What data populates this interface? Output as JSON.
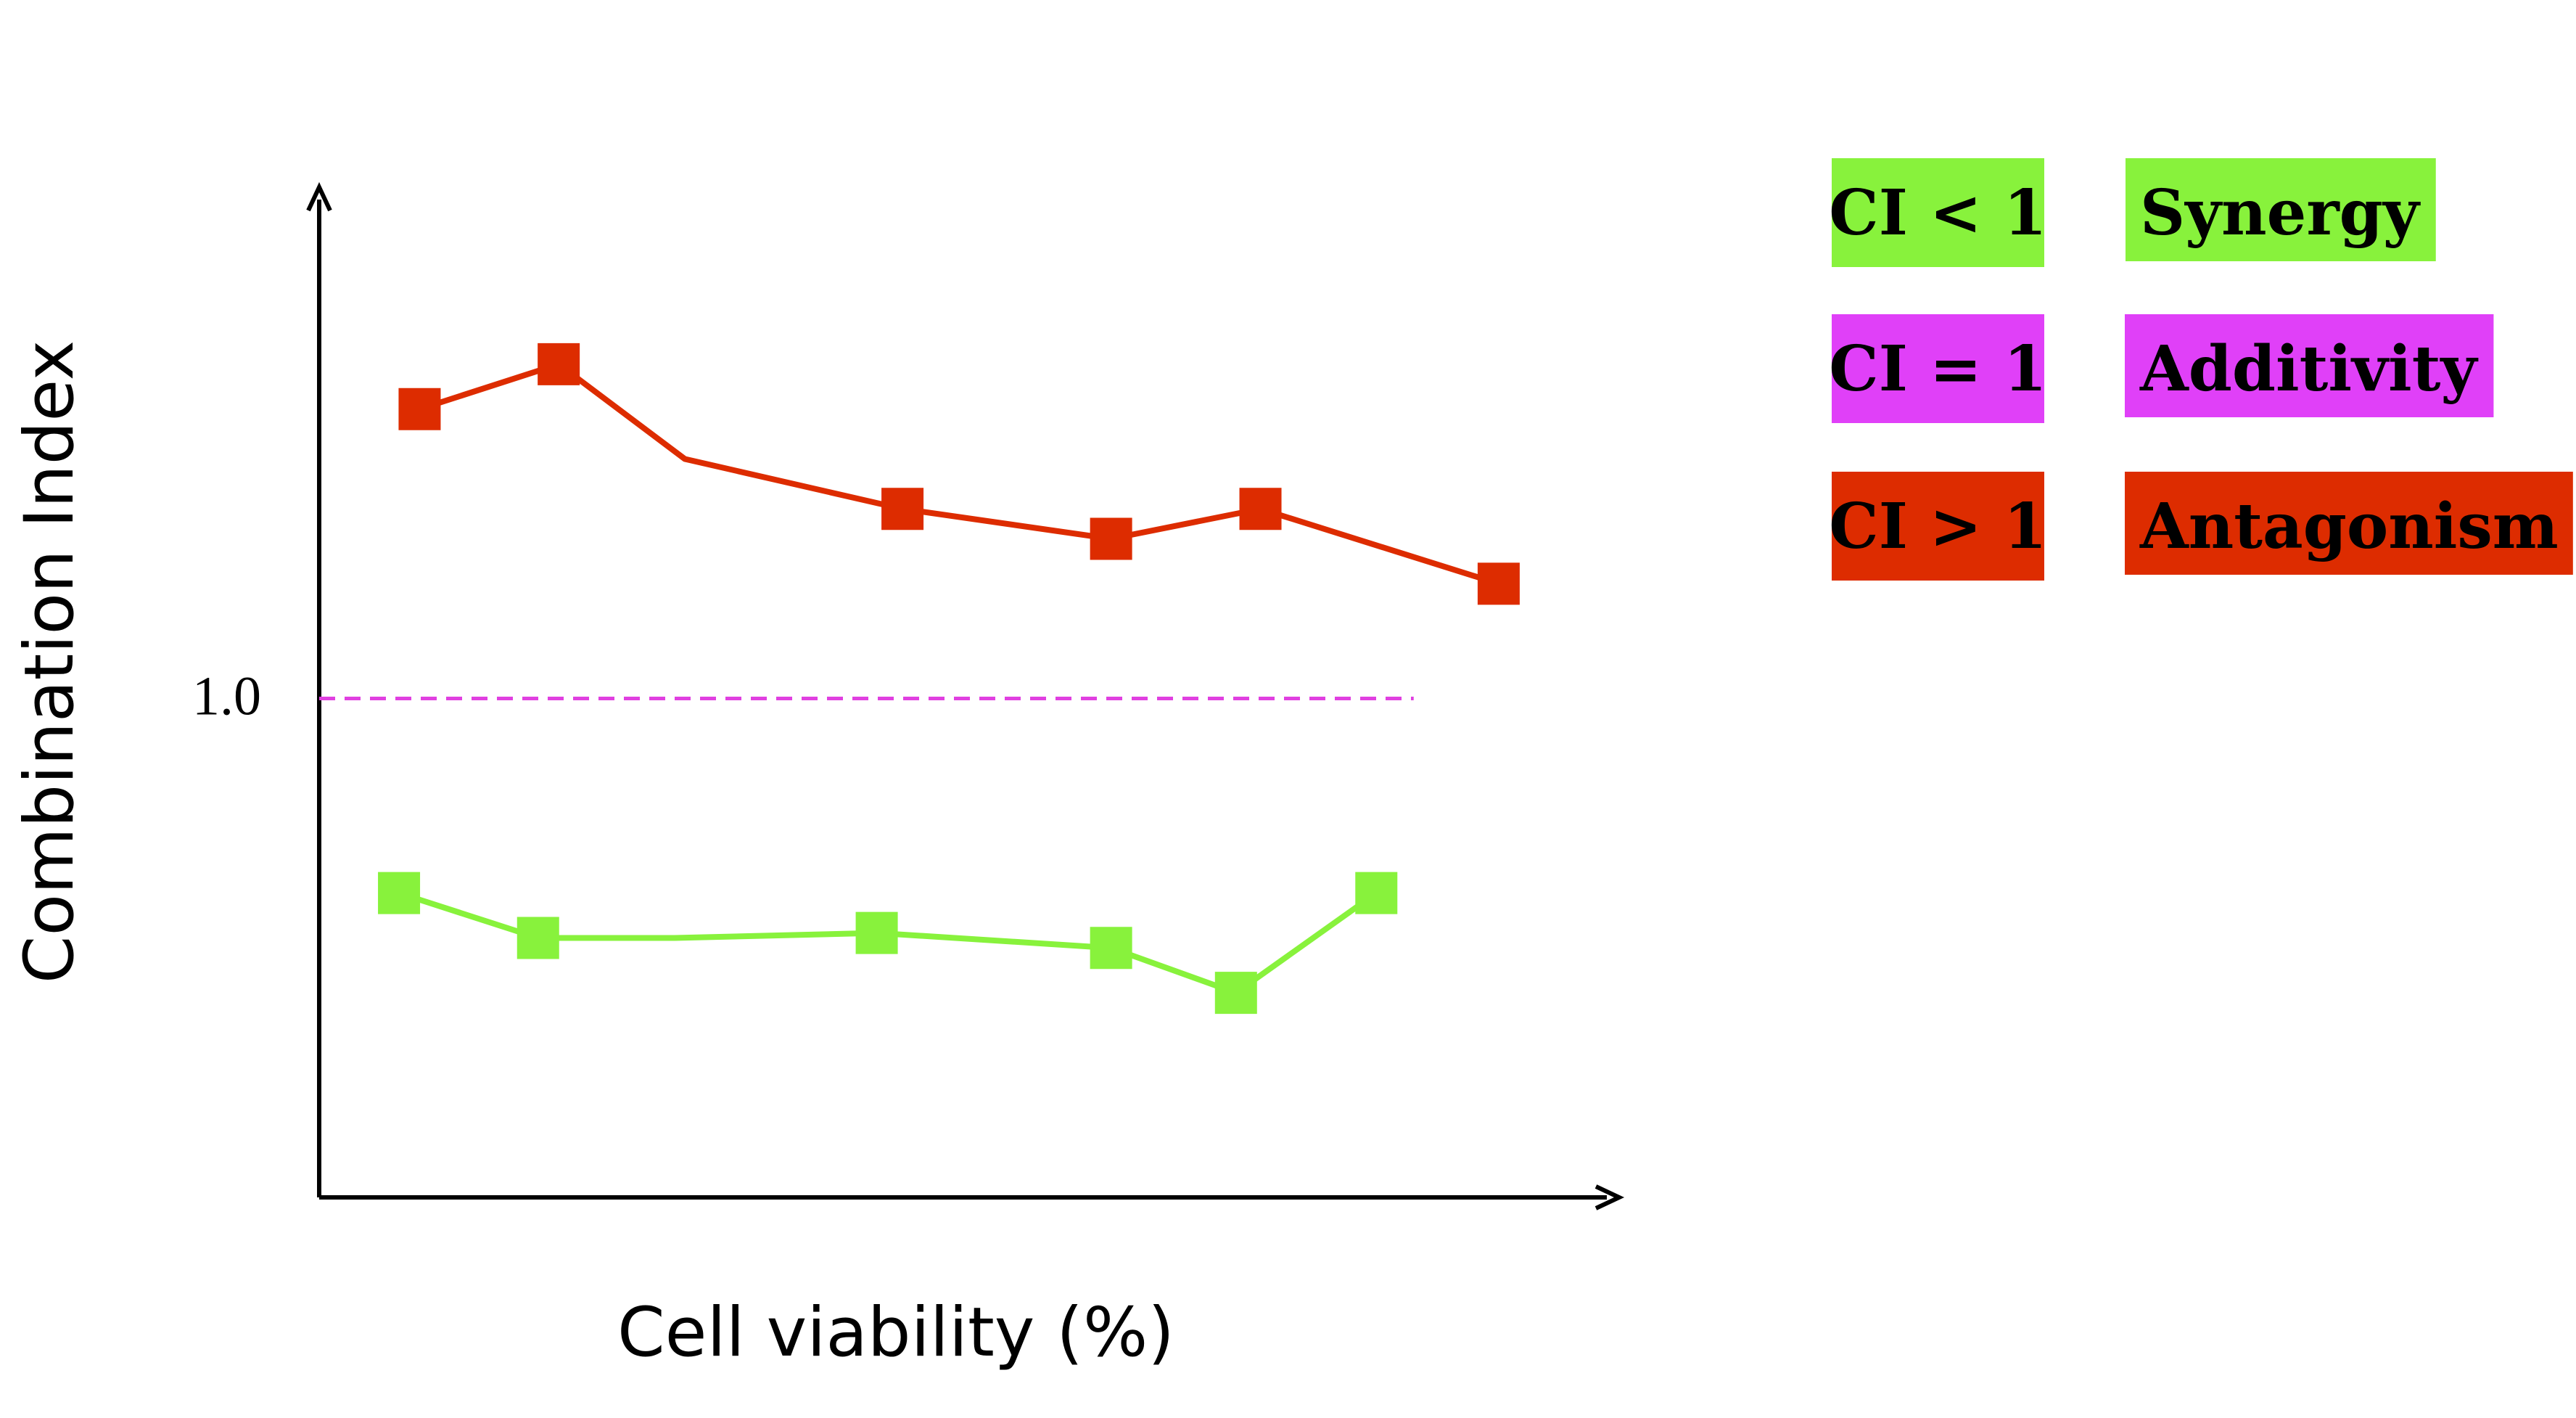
{
  "chart_data": {
    "type": "line",
    "title": "",
    "xlabel": "Cell viability (%)",
    "ylabel": "Combination Index",
    "y_ticks": [
      {
        "value": 1.0,
        "label": "1.0"
      }
    ],
    "xlim": [
      0,
      100
    ],
    "ylim": [
      0,
      2.0
    ],
    "grid": false,
    "reference_line": {
      "y": 1.0,
      "style": "dashed",
      "color": "#e040e0"
    },
    "series": [
      {
        "color": "#dd2c00",
        "x": [
          7.8,
          18.6,
          28.4,
          45.3,
          61.5,
          73.1,
          91.6
        ],
        "y": [
          1.58,
          1.67,
          1.48,
          1.38,
          1.32,
          1.38,
          1.23
        ],
        "markers": [
          true,
          true,
          false,
          true,
          true,
          true,
          true
        ]
      },
      {
        "color": "#88f23c",
        "x": [
          6.2,
          17.0,
          27.6,
          43.3,
          61.5,
          71.2,
          82.1
        ],
        "y": [
          0.61,
          0.52,
          0.52,
          0.53,
          0.5,
          0.41,
          0.61
        ],
        "markers": [
          true,
          true,
          false,
          true,
          true,
          true,
          true
        ]
      }
    ],
    "legend": {
      "placement": "right",
      "items": [
        {
          "code": "CI < 1",
          "meaning": "Synergy",
          "color": "#88f23c"
        },
        {
          "code": "CI = 1",
          "meaning": "Additivity",
          "color": "#e040f8"
        },
        {
          "code": "CI > 1",
          "meaning": "Antagonism",
          "color": "#dd2c00"
        }
      ]
    }
  }
}
